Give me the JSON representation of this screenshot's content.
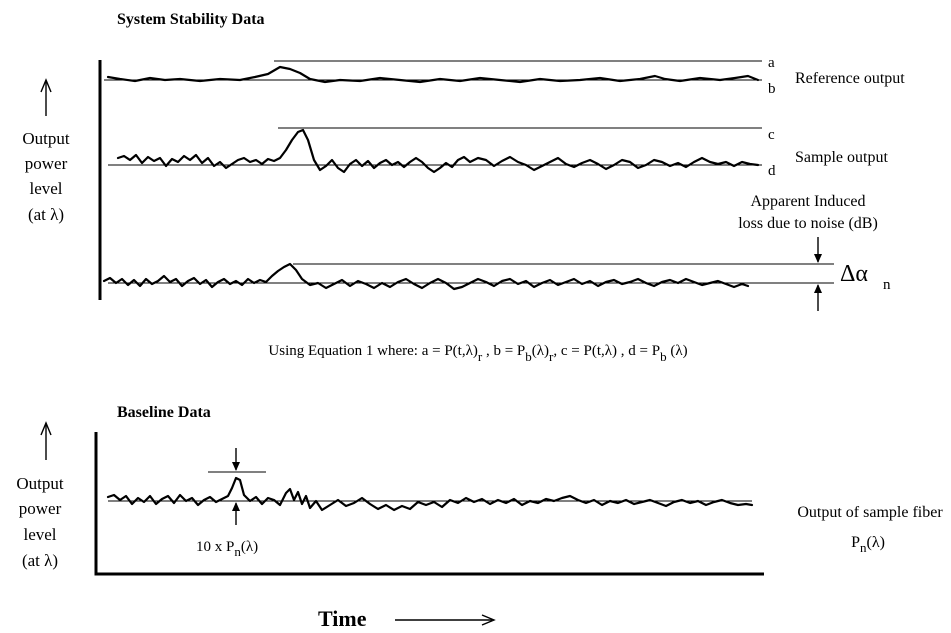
{
  "top_panel": {
    "title": "System Stability Data",
    "ylabel_lines": [
      "Output",
      "power",
      "level",
      "(at λ)"
    ],
    "line_labels": {
      "a": "a",
      "b": "b",
      "c": "c",
      "d": "d"
    },
    "reference_label": "Reference output",
    "sample_label": "Sample output",
    "induced_loss_lines": [
      "Apparent Induced",
      "loss due to noise (dB)"
    ],
    "delta_symbol": "Δα",
    "delta_subscript": "n",
    "equation": {
      "prefix": "Using Equation 1 where:  a = P(t,λ)",
      "r1": "r",
      "mid1": " , b = P",
      "b_sub": "b",
      "mid2": "(λ)",
      "r2": "r",
      "mid3": ", c = P(t,λ) , d = P",
      "d_sub": "b",
      "end": " (λ)"
    }
  },
  "bottom_panel": {
    "title": "Baseline Data",
    "ylabel_lines": [
      "Output",
      "power",
      "level",
      "(at λ)"
    ],
    "noise_label_prefix": "10 x P",
    "noise_label_sub": "n",
    "noise_label_end": "(λ)",
    "output_label_line1": "Output of sample fiber",
    "output_label_p": "P",
    "output_label_sub": "n",
    "output_label_end": "(λ)",
    "xlabel": "Time"
  }
}
